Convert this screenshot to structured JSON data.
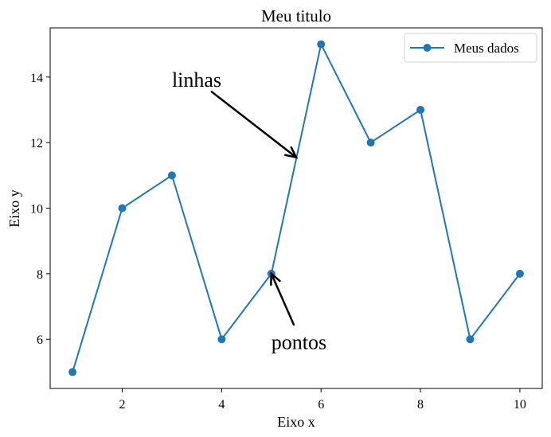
{
  "chart_data": {
    "type": "line",
    "title": "Meu titulo",
    "xlabel": "Eixo x",
    "ylabel": "Eixo y",
    "xlim": [
      0.55,
      10.45
    ],
    "ylim": [
      4.5,
      15.5
    ],
    "xticks": [
      2,
      4,
      6,
      8,
      10
    ],
    "yticks": [
      6,
      8,
      10,
      12,
      14
    ],
    "grid": false,
    "legend": "top-right",
    "series": [
      {
        "name": "Meus dados",
        "color": "#1f77b4",
        "marker": "circle",
        "x": [
          1,
          2,
          3,
          4,
          5,
          6,
          7,
          8,
          9,
          10
        ],
        "y": [
          5,
          10,
          11,
          6,
          8,
          15,
          12,
          13,
          6,
          8
        ]
      }
    ],
    "annotations": [
      {
        "text": "linhas",
        "text_x": 3.0,
        "text_y": 13.7,
        "arrow_from_x": 3.8,
        "arrow_from_y": 13.55,
        "arrow_to_x": 5.5,
        "arrow_to_y": 11.55
      },
      {
        "text": "pontos",
        "text_x": 5.0,
        "text_y": 5.7,
        "arrow_from_x": 5.45,
        "arrow_from_y": 6.45,
        "arrow_to_x": 5.0,
        "arrow_to_y": 8.0
      }
    ]
  }
}
